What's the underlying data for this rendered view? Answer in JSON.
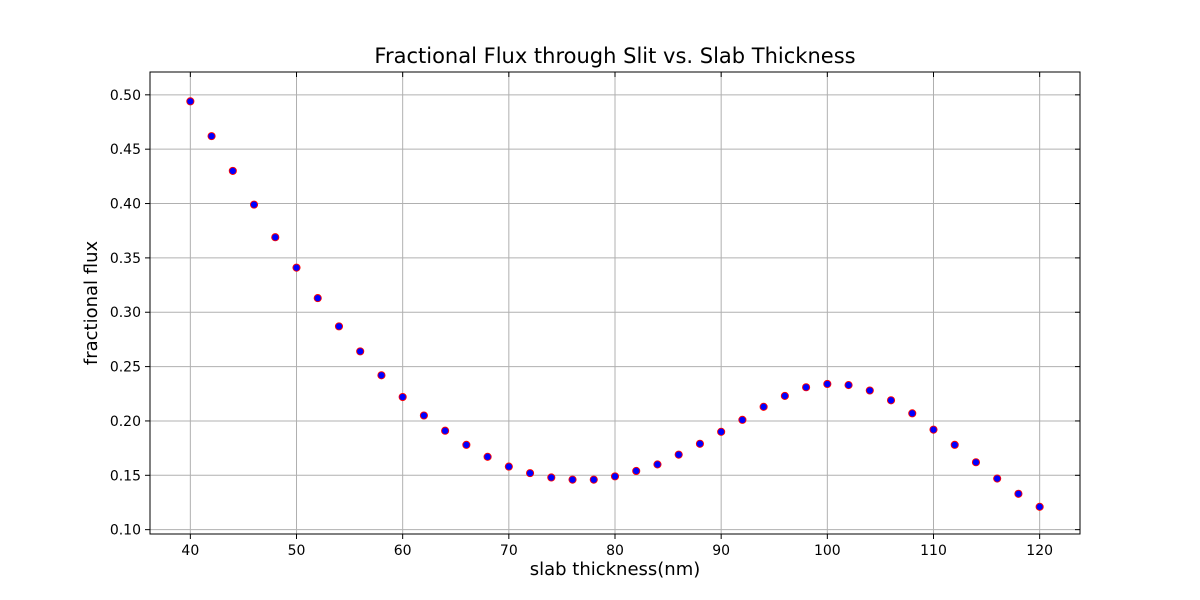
{
  "chart_data": {
    "type": "scatter",
    "title": "Fractional Flux through Slit vs. Slab Thickness",
    "xlabel": "slab thickness(nm)",
    "ylabel": "fractional flux",
    "xlim": [
      36.2,
      123.8
    ],
    "ylim": [
      0.096,
      0.521
    ],
    "xticks": [
      40,
      50,
      60,
      70,
      80,
      90,
      100,
      110,
      120
    ],
    "yticks": [
      0.1,
      0.15,
      0.2,
      0.25,
      0.3,
      0.35,
      0.4,
      0.45,
      0.5
    ],
    "ytick_labels": [
      "0.10",
      "0.15",
      "0.20",
      "0.25",
      "0.30",
      "0.35",
      "0.40",
      "0.45",
      "0.50"
    ],
    "grid": true,
    "marker_face_color": "#0000ff",
    "marker_edge_color": "#ff0000",
    "series": [
      {
        "x": [
          40,
          42,
          44,
          46,
          48,
          50,
          52,
          54,
          56,
          58,
          60,
          62,
          64,
          66,
          68,
          70,
          72,
          74,
          76,
          78,
          80,
          82,
          84,
          86,
          88,
          90,
          92,
          94,
          96,
          98,
          100,
          102,
          104,
          106,
          108,
          110,
          112,
          114,
          116,
          118,
          120
        ],
        "y": [
          0.494,
          0.462,
          0.43,
          0.399,
          0.369,
          0.341,
          0.313,
          0.287,
          0.264,
          0.242,
          0.222,
          0.205,
          0.191,
          0.178,
          0.167,
          0.158,
          0.152,
          0.148,
          0.146,
          0.146,
          0.149,
          0.154,
          0.16,
          0.169,
          0.179,
          0.19,
          0.201,
          0.213,
          0.223,
          0.231,
          0.234,
          0.233,
          0.228,
          0.219,
          0.207,
          0.192,
          0.178,
          0.162,
          0.147,
          0.133,
          0.121
        ]
      }
    ]
  }
}
